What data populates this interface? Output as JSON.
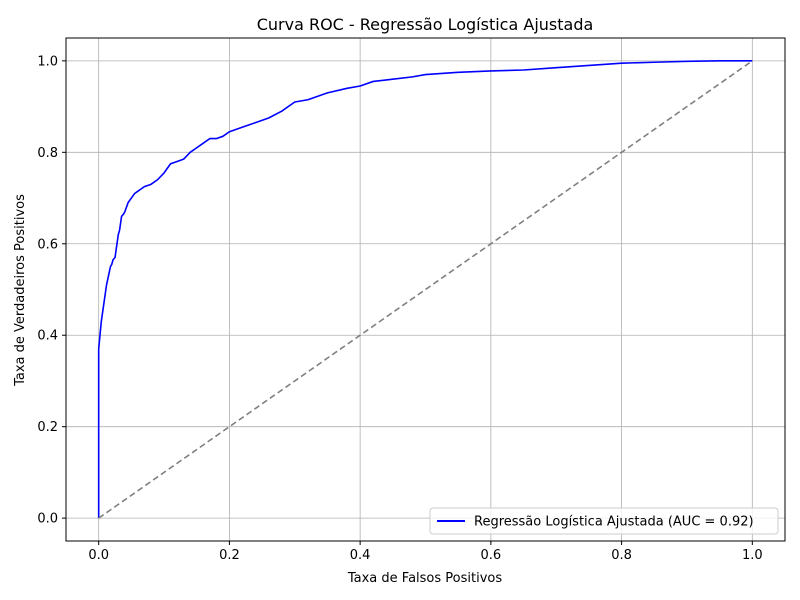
{
  "chart_data": {
    "type": "line",
    "title": "Curva ROC - Regressão Logística Ajustada",
    "xlabel": "Taxa de Falsos Positivos",
    "ylabel": "Taxa de Verdadeiros Positivos",
    "xlim": [
      -0.05,
      1.05
    ],
    "ylim": [
      -0.05,
      1.05
    ],
    "x_ticks": [
      0.0,
      0.2,
      0.4,
      0.6,
      0.8,
      1.0
    ],
    "x_tick_labels": [
      "0.0",
      "0.2",
      "0.4",
      "0.6",
      "0.8",
      "1.0"
    ],
    "y_ticks": [
      0.0,
      0.2,
      0.4,
      0.6,
      0.8,
      1.0
    ],
    "y_tick_labels": [
      "0.0",
      "0.2",
      "0.4",
      "0.6",
      "0.8",
      "1.0"
    ],
    "grid": true,
    "legend_position": "lower-right",
    "series": [
      {
        "name": "Regressão Logística Ajustada (AUC = 0.92)",
        "color": "#0000ff",
        "line_style": "solid",
        "x": [
          0.0,
          0.0,
          0.002,
          0.004,
          0.006,
          0.008,
          0.01,
          0.012,
          0.015,
          0.018,
          0.02,
          0.022,
          0.025,
          0.028,
          0.03,
          0.032,
          0.035,
          0.038,
          0.04,
          0.045,
          0.05,
          0.055,
          0.06,
          0.065,
          0.07,
          0.08,
          0.09,
          0.1,
          0.11,
          0.12,
          0.13,
          0.14,
          0.15,
          0.16,
          0.17,
          0.18,
          0.19,
          0.2,
          0.22,
          0.24,
          0.26,
          0.28,
          0.3,
          0.32,
          0.35,
          0.38,
          0.4,
          0.42,
          0.45,
          0.48,
          0.5,
          0.55,
          0.6,
          0.65,
          0.7,
          0.75,
          0.8,
          0.85,
          0.9,
          0.95,
          1.0
        ],
        "y": [
          0.0,
          0.37,
          0.4,
          0.43,
          0.45,
          0.47,
          0.49,
          0.51,
          0.53,
          0.55,
          0.555,
          0.565,
          0.57,
          0.6,
          0.62,
          0.63,
          0.66,
          0.665,
          0.67,
          0.69,
          0.7,
          0.71,
          0.715,
          0.72,
          0.725,
          0.73,
          0.74,
          0.755,
          0.775,
          0.78,
          0.785,
          0.8,
          0.81,
          0.82,
          0.83,
          0.83,
          0.835,
          0.845,
          0.855,
          0.865,
          0.875,
          0.89,
          0.91,
          0.915,
          0.93,
          0.94,
          0.945,
          0.955,
          0.96,
          0.965,
          0.97,
          0.975,
          0.978,
          0.98,
          0.985,
          0.99,
          0.995,
          0.997,
          0.999,
          1.0,
          1.0
        ]
      },
      {
        "name": "",
        "color": "#808080",
        "line_style": "dashed",
        "x": [
          0.0,
          1.0
        ],
        "y": [
          0.0,
          1.0
        ]
      }
    ]
  }
}
